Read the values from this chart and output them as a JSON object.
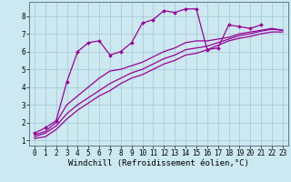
{
  "background_color": "#cce8f0",
  "grid_color": "#aaccd8",
  "line_color": "#990099",
  "marker": "D",
  "marker_size": 2.0,
  "linewidth": 0.9,
  "xlabel": "Windchill (Refroidissement éolien,°C)",
  "xlabel_fontsize": 6.5,
  "tick_fontsize": 5.5,
  "xlim": [
    -0.5,
    23.5
  ],
  "ylim": [
    0.7,
    8.8
  ],
  "yticks": [
    1,
    2,
    3,
    4,
    5,
    6,
    7,
    8
  ],
  "xticks": [
    0,
    1,
    2,
    3,
    4,
    5,
    6,
    7,
    8,
    9,
    10,
    11,
    12,
    13,
    14,
    15,
    16,
    17,
    18,
    19,
    20,
    21,
    22,
    23
  ],
  "series": [
    {
      "x": [
        0,
        1,
        2,
        3,
        4,
        5,
        6,
        7,
        8,
        9,
        10,
        11,
        12,
        13,
        14,
        15,
        16,
        17,
        18,
        19,
        20,
        21
      ],
      "y": [
        1.4,
        1.7,
        2.1,
        4.3,
        6.0,
        6.5,
        6.6,
        5.8,
        6.0,
        6.5,
        7.6,
        7.8,
        8.3,
        8.2,
        8.4,
        8.4,
        6.1,
        6.2,
        7.5,
        7.4,
        7.3,
        7.5
      ],
      "markers": true
    },
    {
      "x": [
        0,
        1,
        2,
        3,
        4,
        5,
        6,
        7,
        8,
        9,
        10,
        11,
        12,
        13,
        14,
        15,
        16,
        17,
        18,
        19,
        20,
        21,
        22,
        23
      ],
      "y": [
        1.3,
        1.5,
        2.0,
        3.0,
        3.5,
        4.0,
        4.5,
        4.9,
        5.0,
        5.2,
        5.4,
        5.7,
        6.0,
        6.2,
        6.5,
        6.6,
        6.6,
        6.7,
        6.8,
        7.0,
        7.1,
        7.2,
        7.3,
        7.2
      ],
      "markers": false
    },
    {
      "x": [
        0,
        1,
        2,
        3,
        4,
        5,
        6,
        7,
        8,
        9,
        10,
        11,
        12,
        13,
        14,
        15,
        16,
        17,
        18,
        19,
        20,
        21,
        22,
        23
      ],
      "y": [
        1.2,
        1.4,
        1.8,
        2.5,
        3.0,
        3.4,
        3.8,
        4.2,
        4.5,
        4.8,
        5.0,
        5.3,
        5.6,
        5.8,
        6.1,
        6.2,
        6.3,
        6.5,
        6.7,
        6.9,
        7.0,
        7.15,
        7.25,
        7.2
      ],
      "markers": false
    },
    {
      "x": [
        0,
        1,
        2,
        3,
        4,
        5,
        6,
        7,
        8,
        9,
        10,
        11,
        12,
        13,
        14,
        15,
        16,
        17,
        18,
        19,
        20,
        21,
        22,
        23
      ],
      "y": [
        1.1,
        1.2,
        1.6,
        2.2,
        2.7,
        3.1,
        3.5,
        3.8,
        4.2,
        4.5,
        4.7,
        5.0,
        5.3,
        5.5,
        5.8,
        5.9,
        6.1,
        6.35,
        6.6,
        6.75,
        6.85,
        7.0,
        7.1,
        7.1
      ],
      "markers": false
    }
  ]
}
